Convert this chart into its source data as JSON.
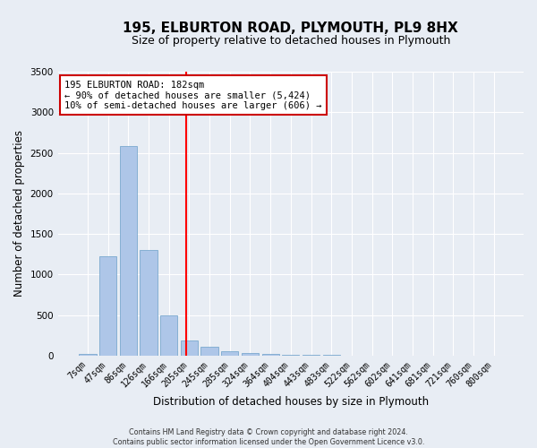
{
  "title": "195, ELBURTON ROAD, PLYMOUTH, PL9 8HX",
  "subtitle": "Size of property relative to detached houses in Plymouth",
  "xlabel": "Distribution of detached houses by size in Plymouth",
  "ylabel": "Number of detached properties",
  "categories": [
    "7sqm",
    "47sqm",
    "86sqm",
    "126sqm",
    "166sqm",
    "205sqm",
    "245sqm",
    "285sqm",
    "324sqm",
    "364sqm",
    "404sqm",
    "443sqm",
    "483sqm",
    "522sqm",
    "562sqm",
    "602sqm",
    "641sqm",
    "681sqm",
    "721sqm",
    "760sqm",
    "800sqm"
  ],
  "values": [
    25,
    1220,
    2580,
    1300,
    500,
    190,
    110,
    55,
    30,
    25,
    10,
    10,
    10,
    0,
    0,
    0,
    0,
    0,
    0,
    0,
    0
  ],
  "bar_color": "#aec6e8",
  "bar_edge_color": "#6a9fc8",
  "annotation_title": "195 ELBURTON ROAD: 182sqm",
  "annotation_line1": "← 90% of detached houses are smaller (5,424)",
  "annotation_line2": "10% of semi-detached houses are larger (606) →",
  "footer_line1": "Contains HM Land Registry data © Crown copyright and database right 2024.",
  "footer_line2": "Contains public sector information licensed under the Open Government Licence v3.0.",
  "ylim": [
    0,
    3500
  ],
  "yticks": [
    0,
    500,
    1000,
    1500,
    2000,
    2500,
    3000,
    3500
  ],
  "fig_bg_color": "#e8edf4",
  "plot_bg_color": "#e8edf4",
  "grid_color": "#ffffff",
  "title_fontsize": 11,
  "subtitle_fontsize": 9,
  "tick_fontsize": 7,
  "red_line_index": 4.85
}
